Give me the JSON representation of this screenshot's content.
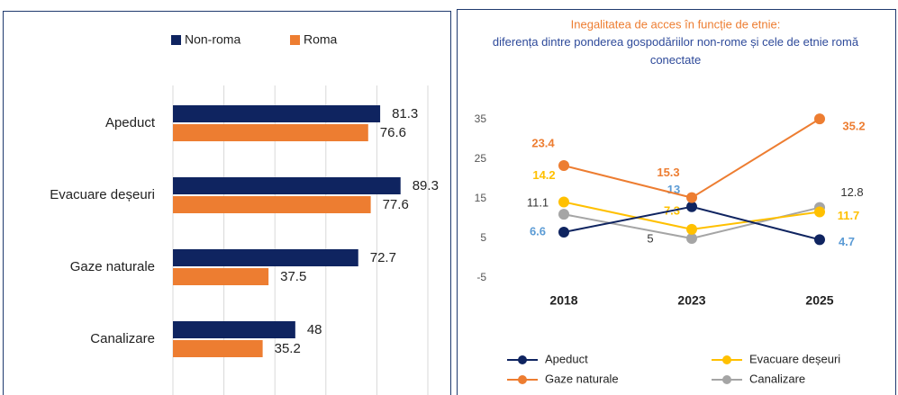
{
  "chart_data": [
    {
      "type": "hbar",
      "categories": [
        "Apeduct",
        "Evacuare deșeuri",
        "Gaze naturale",
        "Canalizare"
      ],
      "series": [
        {
          "name": "Non-roma",
          "color": "#0f2460",
          "values": [
            81.3,
            89.3,
            72.7,
            48
          ]
        },
        {
          "name": "Roma",
          "color": "#ed7d31",
          "values": [
            76.6,
            77.6,
            37.5,
            35.2
          ]
        }
      ],
      "xlim": [
        0,
        100
      ],
      "xticks": [
        0,
        20,
        40,
        60,
        80,
        100
      ],
      "grid": true
    },
    {
      "type": "line",
      "title": "Inegalitatea de acces în funcție de etnie:",
      "subtitle": "diferența dintre ponderea gospodăriilor non-rome și cele de etnie romă conectate",
      "categories": [
        "2018",
        "2023",
        "2025"
      ],
      "series": [
        {
          "name": "Apeduct",
          "color": "#0f2460",
          "label_color": "#5b9bd5",
          "values": [
            6.6,
            13,
            4.7
          ]
        },
        {
          "name": "Evacuare deșeuri",
          "color": "#ffc000",
          "label_color": "#ffc000",
          "values": [
            14.2,
            7.3,
            11.7
          ]
        },
        {
          "name": "Gaze naturale",
          "color": "#ed7d31",
          "label_color": "#ed7d31",
          "values": [
            23.4,
            15.3,
            35.2
          ]
        },
        {
          "name": "Canalizare",
          "color": "#a5a5a5",
          "label_color": "#333333",
          "values": [
            11.1,
            5,
            12.8
          ]
        }
      ],
      "ylim": [
        -5,
        35
      ],
      "yticks": [
        -5,
        5,
        15,
        25,
        35
      ],
      "grid": false
    }
  ]
}
